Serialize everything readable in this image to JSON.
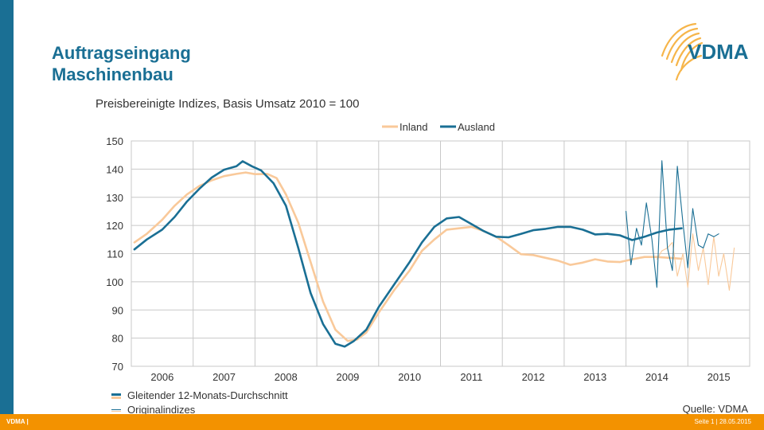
{
  "header": {
    "title_line1": "Auftragseingang",
    "title_line2": "Maschinenbau",
    "logo_text": "VDMA"
  },
  "footer": {
    "left": "VDMA |",
    "right": "Seite 1 | 28.05.2015",
    "source": "Quelle: VDMA"
  },
  "bottom_legend": {
    "item1": "Gleitender 12-Monats-Durchschnitt",
    "item2": "Originalindizes"
  },
  "colors": {
    "inland": "#f9c99a",
    "ausland": "#1a6f94",
    "accent_orange": "#f39200",
    "grid": "#c8c8c8"
  },
  "chart_data": {
    "type": "line",
    "subtitle": "Preisbereinigte Indizes, Basis Umsatz 2010 = 100",
    "xlabel": "",
    "ylabel": "",
    "x_ticks": [
      "2006",
      "2007",
      "2008",
      "2009",
      "2010",
      "2011",
      "2012",
      "2013",
      "2014",
      "2015"
    ],
    "xlim": [
      2005.5,
      2015.5
    ],
    "ylim": [
      70,
      150
    ],
    "y_ticks": [
      70,
      80,
      90,
      100,
      110,
      120,
      130,
      140,
      150
    ],
    "grid": true,
    "legend_position": "top",
    "series": [
      {
        "name": "Inland",
        "style": "moving-average",
        "x": [
          2005.55,
          2005.75,
          2006.0,
          2006.2,
          2006.4,
          2006.6,
          2006.8,
          2007.0,
          2007.2,
          2007.35,
          2007.5,
          2007.7,
          2007.85,
          2008.0,
          2008.2,
          2008.4,
          2008.6,
          2008.8,
          2009.0,
          2009.15,
          2009.3,
          2009.5,
          2009.75,
          2010.0,
          2010.2,
          2010.4,
          2010.6,
          2010.8,
          2011.0,
          2011.2,
          2011.4,
          2011.6,
          2011.8,
          2012.0,
          2012.2,
          2012.4,
          2012.6,
          2012.8,
          2013.0,
          2013.2,
          2013.4,
          2013.6,
          2013.8,
          2014.0,
          2014.2,
          2014.4
        ],
        "values": [
          114,
          117,
          122,
          127,
          131,
          134,
          136,
          137.5,
          138.3,
          138.8,
          138.2,
          138.3,
          136.8,
          131,
          121,
          107,
          93,
          83,
          79,
          79.5,
          82,
          89,
          97,
          104,
          111,
          115,
          118.5,
          119,
          119.5,
          118,
          116,
          113,
          109.8,
          109.5,
          108.5,
          107.5,
          106,
          106.8,
          108,
          107.2,
          107,
          108,
          108.8,
          108.8,
          108.5,
          108.2
        ]
      },
      {
        "name": "Ausland",
        "style": "moving-average",
        "x": [
          2005.55,
          2005.75,
          2006.0,
          2006.2,
          2006.4,
          2006.6,
          2006.8,
          2007.0,
          2007.2,
          2007.3,
          2007.45,
          2007.6,
          2007.8,
          2008.0,
          2008.2,
          2008.4,
          2008.6,
          2008.8,
          2008.95,
          2009.1,
          2009.3,
          2009.5,
          2009.75,
          2010.0,
          2010.2,
          2010.4,
          2010.6,
          2010.8,
          2011.0,
          2011.2,
          2011.4,
          2011.6,
          2011.8,
          2012.0,
          2012.2,
          2012.4,
          2012.6,
          2012.8,
          2013.0,
          2013.2,
          2013.4,
          2013.6,
          2013.8,
          2014.0,
          2014.2,
          2014.4
        ],
        "values": [
          111.5,
          115,
          118.5,
          123,
          128.5,
          133,
          137,
          139.8,
          141,
          142.8,
          141,
          139.5,
          135,
          127,
          112,
          96,
          85,
          78,
          77,
          79,
          83,
          91,
          99,
          107,
          114,
          119.5,
          122.5,
          123,
          120.5,
          118,
          116,
          115.8,
          117,
          118.3,
          118.8,
          119.5,
          119.5,
          118.5,
          116.8,
          117,
          116.5,
          114.8,
          116,
          117.5,
          118.5,
          119
        ]
      },
      {
        "name": "Inland",
        "style": "original",
        "x": [
          2014.0,
          2014.08,
          2014.17,
          2014.25,
          2014.33,
          2014.42,
          2014.5,
          2014.58,
          2014.67,
          2014.75,
          2014.83,
          2014.92,
          2015.0,
          2015.08,
          2015.17,
          2015.25
        ],
        "values": [
          108,
          111,
          112,
          114,
          102,
          110,
          98,
          117,
          104,
          112,
          99,
          116,
          102,
          110,
          97,
          112
        ]
      },
      {
        "name": "Ausland",
        "style": "original",
        "x": [
          2013.5,
          2013.58,
          2013.67,
          2013.75,
          2013.83,
          2013.92,
          2014.0,
          2014.08,
          2014.17,
          2014.25,
          2014.33,
          2014.42,
          2014.5,
          2014.58,
          2014.67,
          2014.75,
          2014.83,
          2014.92,
          2015.0
        ],
        "values": [
          125,
          106,
          119,
          113,
          128,
          115,
          98,
          143,
          112,
          104,
          141,
          121,
          105,
          126,
          113,
          112,
          117,
          116,
          117
        ]
      }
    ]
  }
}
